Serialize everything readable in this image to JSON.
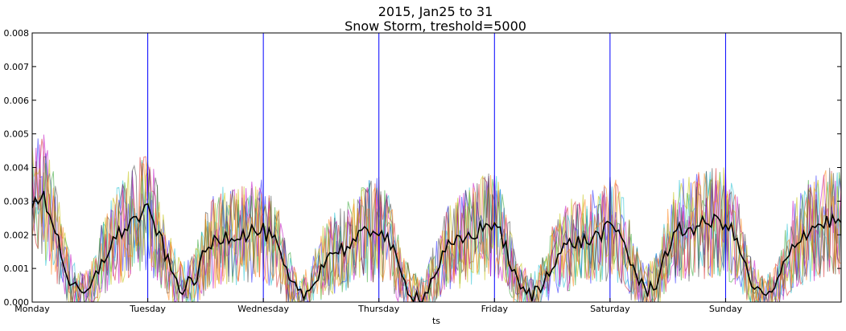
{
  "chart_data": {
    "type": "line",
    "title": "2015, Jan25 to 31",
    "subtitle": "Snow Storm, treshold=5000",
    "xlabel": "ts",
    "ylabel": "",
    "ylim": [
      0,
      0.008
    ],
    "yticks": [
      "0.000",
      "0.001",
      "0.002",
      "0.003",
      "0.004",
      "0.005",
      "0.006",
      "0.007",
      "0.008"
    ],
    "ytick_values": [
      0,
      0.001,
      0.002,
      0.003,
      0.004,
      0.005,
      0.006,
      0.007,
      0.008
    ],
    "xlim": [
      0,
      7
    ],
    "xticks": [
      "Monday",
      "Tuesday",
      "Wednesday",
      "Thursday",
      "Friday",
      "Saturday",
      "Sunday"
    ],
    "xtick_values": [
      0,
      1,
      2,
      3,
      4,
      5,
      6
    ],
    "day_separators": [
      1,
      2,
      3,
      4,
      5,
      6
    ],
    "day_separator_color": "#0000ff",
    "grid": false,
    "background_series": {
      "description": "many noisy per-station series drawn semi-transparent",
      "colors": [
        "#1f1fff",
        "#2ca02c",
        "#d62728",
        "#17becf",
        "#bf00bf",
        "#bfbf00",
        "#404040",
        "#ff7f0e"
      ],
      "opacity": 0.55
    },
    "series": [
      {
        "name": "mean",
        "color": "#000000",
        "x": [
          0,
          0.1,
          0.2,
          0.3,
          0.4,
          0.5,
          0.6,
          0.7,
          0.8,
          0.9,
          1.0,
          1.1,
          1.2,
          1.3,
          1.4,
          1.5,
          1.6,
          1.7,
          1.8,
          1.9,
          2.0,
          2.1,
          2.2,
          2.3,
          2.4,
          2.5,
          2.6,
          2.7,
          2.8,
          2.9,
          3.0,
          3.1,
          3.2,
          3.3,
          3.4,
          3.5,
          3.6,
          3.7,
          3.8,
          3.9,
          4.0,
          4.1,
          4.2,
          4.3,
          4.4,
          4.5,
          4.6,
          4.7,
          4.8,
          4.9,
          5.0,
          5.1,
          5.2,
          5.3,
          5.4,
          5.5,
          5.6,
          5.7,
          5.8,
          5.9,
          6.0,
          6.1,
          6.2,
          6.3,
          6.4,
          6.5,
          6.6,
          6.7,
          6.8,
          6.9,
          7.0
        ],
        "values": [
          0.0028,
          0.0031,
          0.0022,
          0.0008,
          0.0002,
          0.0003,
          0.0012,
          0.0018,
          0.0022,
          0.0025,
          0.0027,
          0.002,
          0.0009,
          0.0004,
          0.0006,
          0.0015,
          0.0019,
          0.002,
          0.002,
          0.0021,
          0.0021,
          0.0018,
          0.0008,
          0.0002,
          0.0003,
          0.0011,
          0.0015,
          0.0016,
          0.0018,
          0.0021,
          0.0022,
          0.0017,
          0.0007,
          0.0002,
          0.0002,
          0.001,
          0.0016,
          0.0018,
          0.002,
          0.0022,
          0.0024,
          0.0016,
          0.0005,
          0.0002,
          0.0004,
          0.0012,
          0.0016,
          0.0018,
          0.0018,
          0.002,
          0.0022,
          0.002,
          0.001,
          0.0003,
          0.0006,
          0.0016,
          0.0021,
          0.0022,
          0.0023,
          0.0024,
          0.0024,
          0.0018,
          0.0007,
          0.0002,
          0.0002,
          0.001,
          0.0018,
          0.0021,
          0.0023,
          0.0024,
          0.0024
        ]
      }
    ]
  }
}
